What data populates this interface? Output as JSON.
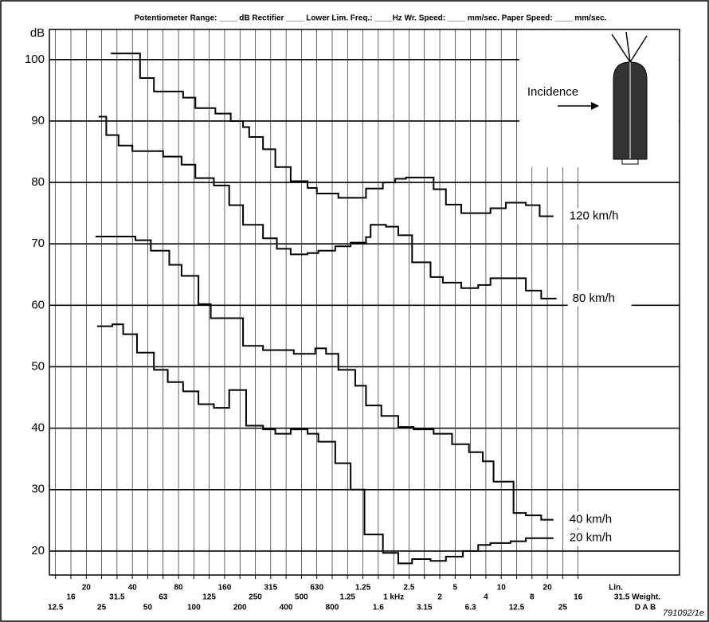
{
  "chart_data": {
    "type": "step",
    "header": "Potentiometer Range: ____ dB    Rectifier ____    Lower Lim. Freq.: ____Hz    Wr. Speed: ____ mm/sec.    Paper Speed: ____ mm/sec.",
    "ylabel": "dB",
    "code": "791092/1e",
    "inset_label": "Incidence",
    "weighting_labels": [
      "Lin.",
      "31.5 Weight.",
      "D A B"
    ],
    "xlim": [
      -2.4,
      38.6
    ],
    "ylim": [
      16.1,
      104.9
    ],
    "yticks": [
      20,
      30,
      40,
      50,
      60,
      70,
      80,
      90,
      100
    ],
    "y_minor_step": 1,
    "grid": true,
    "xticks": [
      {
        "value": -2,
        "label": "12.5"
      },
      {
        "value": -1,
        "label": "16"
      },
      {
        "value": 0,
        "label": "20"
      },
      {
        "value": 1,
        "label": "25"
      },
      {
        "value": 2,
        "label": "31.5"
      },
      {
        "value": 3,
        "label": "40"
      },
      {
        "value": 4,
        "label": "50"
      },
      {
        "value": 5,
        "label": "63"
      },
      {
        "value": 6,
        "label": "80"
      },
      {
        "value": 7,
        "label": "100"
      },
      {
        "value": 8,
        "label": "125"
      },
      {
        "value": 9,
        "label": "160"
      },
      {
        "value": 10,
        "label": "200"
      },
      {
        "value": 11,
        "label": "250"
      },
      {
        "value": 12,
        "label": "315"
      },
      {
        "value": 13,
        "label": "400"
      },
      {
        "value": 14,
        "label": "500"
      },
      {
        "value": 15,
        "label": "630"
      },
      {
        "value": 16,
        "label": "800"
      },
      {
        "value": 17,
        "label": "1.25"
      },
      {
        "value": 18,
        "label": "1.25"
      },
      {
        "value": 19,
        "label": "1.6"
      },
      {
        "value": 20,
        "label": "1 kHz"
      },
      {
        "value": 21,
        "label": "2.5"
      },
      {
        "value": 22,
        "label": "3.15"
      },
      {
        "value": 23,
        "label": "2"
      },
      {
        "value": 24,
        "label": "5"
      },
      {
        "value": 25,
        "label": "6.3"
      },
      {
        "value": 26,
        "label": "4"
      },
      {
        "value": 27,
        "label": "10"
      },
      {
        "value": 28,
        "label": "12.5"
      },
      {
        "value": 29,
        "label": "8"
      },
      {
        "value": 30,
        "label": "20"
      },
      {
        "value": 31,
        "label": "25"
      },
      {
        "value": 32,
        "label": "16"
      }
    ],
    "series": [
      {
        "name": "120 km/h",
        "color": "#000000",
        "x": [
          1.6,
          3.5,
          4.4,
          6.3,
          7.1,
          8.4,
          9.4,
          10.2,
          10.6,
          11.5,
          12.3,
          13.3,
          14.4,
          15.0,
          16.4,
          18.2,
          19.3,
          20.1,
          20.8,
          22.6,
          23.4,
          24.4,
          26.3,
          27.3,
          28.6,
          29.5,
          30.4
        ],
        "values": [
          101,
          97,
          94.8,
          93.8,
          92.1,
          91.2,
          90,
          89,
          87.4,
          85.4,
          82.5,
          80.2,
          79.1,
          78.2,
          77.5,
          79,
          80,
          80.6,
          80.8,
          78.9,
          76.4,
          75,
          75.8,
          76.7,
          76.3,
          74.5,
          74.5
        ]
      },
      {
        "name": "80 km/h",
        "color": "#000000",
        "x": [
          0.8,
          1.3,
          2.1,
          3.0,
          5.0,
          6.2,
          7.1,
          8.3,
          9.3,
          10.2,
          11.5,
          12.4,
          13.3,
          14.4,
          15.1,
          16.2,
          17.2,
          18.2,
          18.5,
          19.5,
          20.3,
          21.2,
          22.4,
          23.2,
          24.4,
          25.5,
          26.3,
          28.6,
          29.6,
          30.6
        ],
        "values": [
          90.7,
          87.7,
          86,
          85.1,
          84.2,
          82.9,
          80.7,
          79.5,
          76.3,
          73.1,
          70.9,
          69.2,
          68.3,
          68.5,
          68.9,
          69.6,
          70.2,
          71.1,
          73.1,
          72.8,
          71.4,
          67,
          64.6,
          63.7,
          62.8,
          63.3,
          64.4,
          62.4,
          61.1,
          61.1
        ]
      },
      {
        "name": "40 km/h",
        "color": "#000000",
        "x": [
          0.6,
          3.2,
          4.2,
          5.4,
          6.2,
          7.3,
          8.1,
          10.2,
          11.5,
          13.5,
          14.9,
          15.6,
          16.4,
          17.5,
          18.2,
          19.2,
          20.3,
          21.3,
          22.6,
          23.8,
          24.9,
          25.8,
          26.5,
          27.8,
          28.6,
          29.6,
          30.4
        ],
        "values": [
          71.2,
          70.6,
          68.9,
          66.6,
          64.8,
          60.2,
          57.9,
          53.4,
          52.7,
          52.1,
          53,
          52.1,
          49.5,
          46.9,
          43.7,
          42,
          40.2,
          39.8,
          39.1,
          37.4,
          36.1,
          34.6,
          31.3,
          26.2,
          25.8,
          25.1,
          25.1
        ]
      },
      {
        "name": "20 km/h",
        "color": "#000000",
        "x": [
          0.7,
          1.7,
          2.4,
          3.3,
          4.4,
          5.3,
          6.3,
          7.3,
          8.3,
          9.3,
          10.4,
          11.5,
          12.3,
          13.3,
          14.4,
          15.1,
          16.2,
          17.2,
          18.1,
          19.3,
          20.3,
          21.2,
          22.4,
          23.4,
          24.5,
          25.5,
          26.3,
          27.6,
          28.6,
          30.4
        ],
        "values": [
          56.6,
          56.9,
          55.3,
          52.3,
          49.5,
          47.5,
          46,
          43.9,
          43.3,
          46.2,
          40.4,
          39.8,
          39.1,
          39.8,
          39.1,
          37.8,
          34.3,
          30,
          22.7,
          19.7,
          18,
          18.7,
          18.4,
          19.1,
          20,
          21,
          21.3,
          21.6,
          22.1,
          22.1
        ]
      }
    ]
  }
}
